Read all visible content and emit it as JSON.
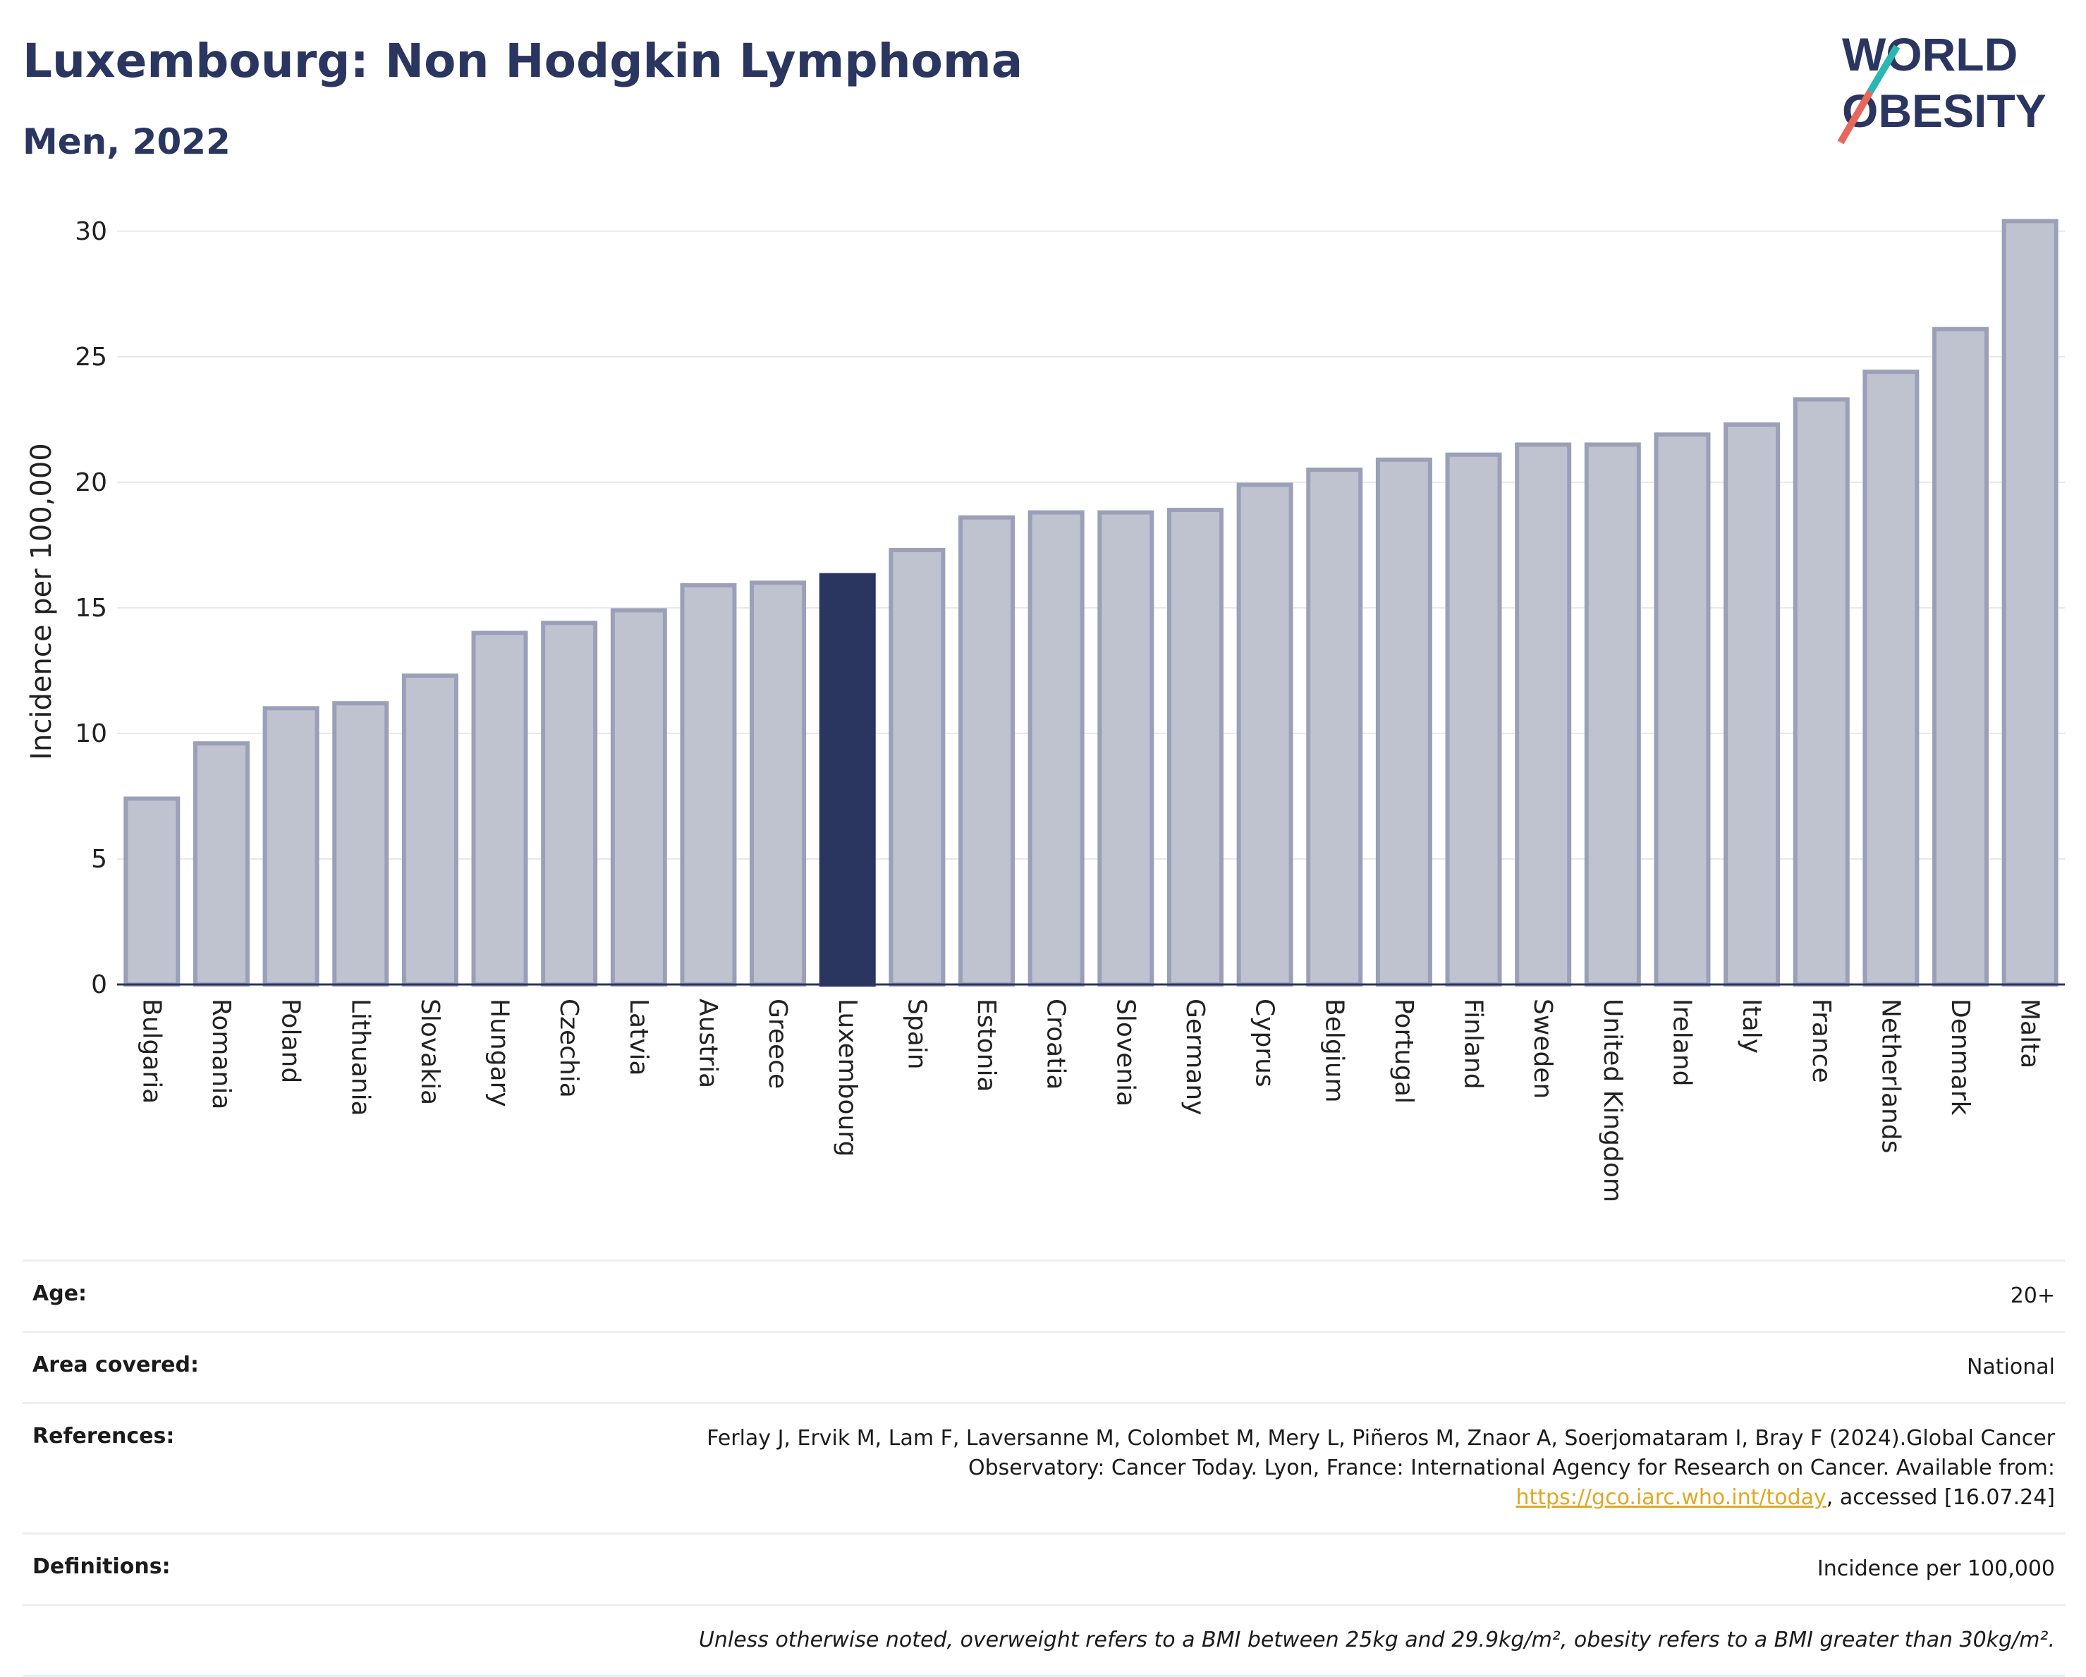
{
  "header": {
    "title": "Luxembourg: Non Hodgkin Lymphoma",
    "subtitle": "Men, 2022"
  },
  "logo": {
    "line1": "WORLD",
    "line2": "OBESITY"
  },
  "chart_data": {
    "type": "bar",
    "title": "Luxembourg: Non Hodgkin Lymphoma",
    "subtitle": "Men, 2022",
    "xlabel": "",
    "ylabel": "Incidence per 100,000",
    "ylim": [
      0,
      30.5
    ],
    "yticks": [
      0,
      5,
      10,
      15,
      20,
      25,
      30
    ],
    "grid": true,
    "highlight": "Luxembourg",
    "colors": {
      "bar": "#bfc3d0",
      "bar_border": "#9aa0b8",
      "highlight": "#2a3660",
      "grid": "#e6e8ef",
      "axis": "#2a3660"
    },
    "categories": [
      "Bulgaria",
      "Romania",
      "Poland",
      "Lithuania",
      "Slovakia",
      "Hungary",
      "Czechia",
      "Latvia",
      "Austria",
      "Greece",
      "Luxembourg",
      "Spain",
      "Estonia",
      "Croatia",
      "Slovenia",
      "Germany",
      "Cyprus",
      "Belgium",
      "Portugal",
      "Finland",
      "Sweden",
      "United Kingdom",
      "Ireland",
      "Italy",
      "France",
      "Netherlands",
      "Denmark",
      "Malta"
    ],
    "values": [
      7.4,
      9.6,
      11.0,
      11.2,
      12.3,
      14.0,
      14.4,
      14.9,
      15.9,
      16.0,
      16.3,
      17.3,
      18.6,
      18.8,
      18.8,
      18.9,
      19.9,
      20.5,
      20.9,
      21.1,
      21.5,
      21.5,
      21.9,
      22.3,
      23.3,
      24.4,
      26.1,
      30.4
    ]
  },
  "info": {
    "age_label": "Age:",
    "age_value": "20+",
    "area_label": "Area covered:",
    "area_value": "National",
    "ref_label": "References:",
    "ref_text_1": "Ferlay J, Ervik M, Lam F, Laversanne M, Colombet M, Mery L, Piñeros M, Znaor A, Soerjomataram I, Bray F (2024).Global Cancer Observatory: Cancer Today. Lyon, France: International Agency for Research on Cancer. Available from: ",
    "ref_link": "https://gco.iarc.who.int/today",
    "ref_text_2": ", accessed [16.07.24]",
    "def_label": "Definitions:",
    "def_value": "Incidence per 100,000",
    "note": "Unless otherwise noted, overweight refers to a BMI between 25kg and 29.9kg/m², obesity refers to a BMI greater than 30kg/m²."
  }
}
